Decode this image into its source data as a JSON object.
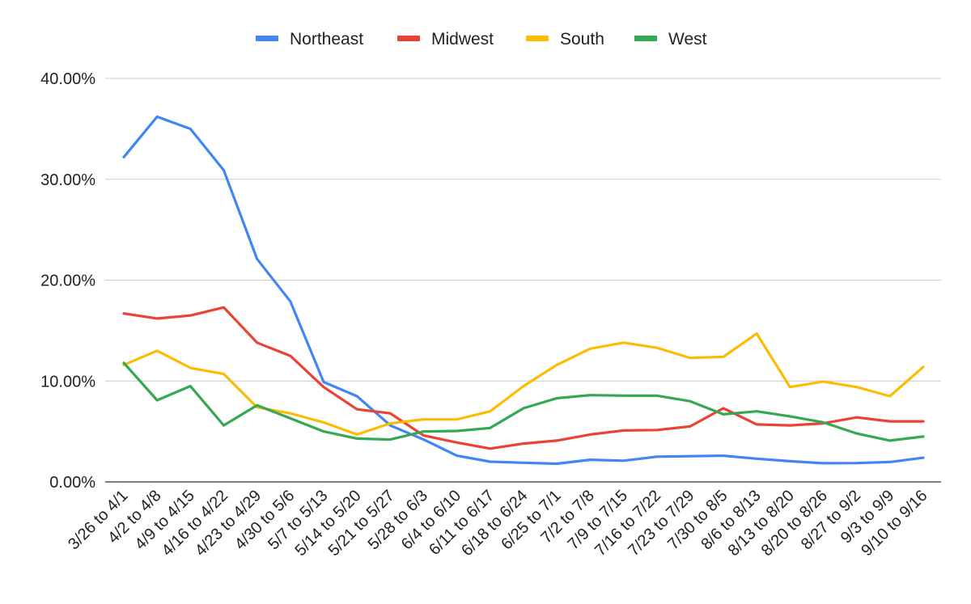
{
  "chart_data": {
    "type": "line",
    "title": "",
    "xlabel": "",
    "ylabel": "",
    "ylim": [
      0,
      40
    ],
    "y_ticks": [
      "0.00%",
      "10.00%",
      "20.00%",
      "30.00%",
      "40.00%"
    ],
    "y_tick_values": [
      0,
      10,
      20,
      30,
      40
    ],
    "grid": true,
    "legend_position": "top",
    "categories": [
      "3/26 to 4/1",
      "4/2 to 4/8",
      "4/9 to 4/15",
      "4/16 to 4/22",
      "4/23 to 4/29",
      "4/30 to 5/6",
      "5/7 to 5/13",
      "5/14 to 5/20",
      "5/21 to 5/27",
      "5/28 to 6/3",
      "6/4 to 6/10",
      "6/11 to 6/17",
      "6/18 to 6/24",
      "6/25 to 7/1",
      "7/2 to 7/8",
      "7/9 to 7/15",
      "7/16 to 7/22",
      "7/23 to 7/29",
      "7/30 to 8/5",
      "8/6 to 8/13",
      "8/13 to 8/20",
      "8/20 to 8/26",
      "8/27 to 9/2",
      "9/3 to 9/9",
      "9/10 to 9/16"
    ],
    "series": [
      {
        "name": "Northeast",
        "color": "#4285F4",
        "values": [
          32.2,
          36.2,
          35.0,
          30.9,
          22.1,
          17.9,
          9.9,
          8.5,
          5.6,
          4.2,
          2.6,
          2.0,
          1.9,
          1.8,
          2.2,
          2.1,
          2.5,
          2.55,
          2.6,
          2.3,
          2.05,
          1.85,
          1.87,
          1.97,
          2.4
        ]
      },
      {
        "name": "Midwest",
        "color": "#EA4335",
        "values": [
          16.7,
          16.2,
          16.5,
          17.3,
          13.8,
          12.5,
          9.4,
          7.2,
          6.8,
          4.6,
          3.9,
          3.3,
          3.8,
          4.1,
          4.7,
          5.1,
          5.15,
          5.5,
          7.3,
          5.7,
          5.6,
          5.8,
          6.4,
          6.0,
          6.0
        ]
      },
      {
        "name": "South",
        "color": "#FBBC04",
        "values": [
          11.6,
          13.0,
          11.3,
          10.7,
          7.4,
          6.8,
          5.9,
          4.7,
          5.8,
          6.2,
          6.2,
          7.0,
          9.5,
          11.6,
          13.2,
          13.8,
          13.3,
          12.3,
          12.4,
          14.7,
          9.4,
          9.95,
          9.4,
          8.5,
          11.4
        ]
      },
      {
        "name": "West",
        "color": "#34A853",
        "values": [
          11.8,
          8.1,
          9.5,
          5.6,
          7.6,
          6.3,
          5.0,
          4.3,
          4.2,
          5.0,
          5.05,
          5.35,
          7.3,
          8.3,
          8.6,
          8.55,
          8.55,
          8.0,
          6.7,
          7.0,
          6.5,
          5.9,
          4.8,
          4.1,
          4.5
        ]
      }
    ]
  }
}
